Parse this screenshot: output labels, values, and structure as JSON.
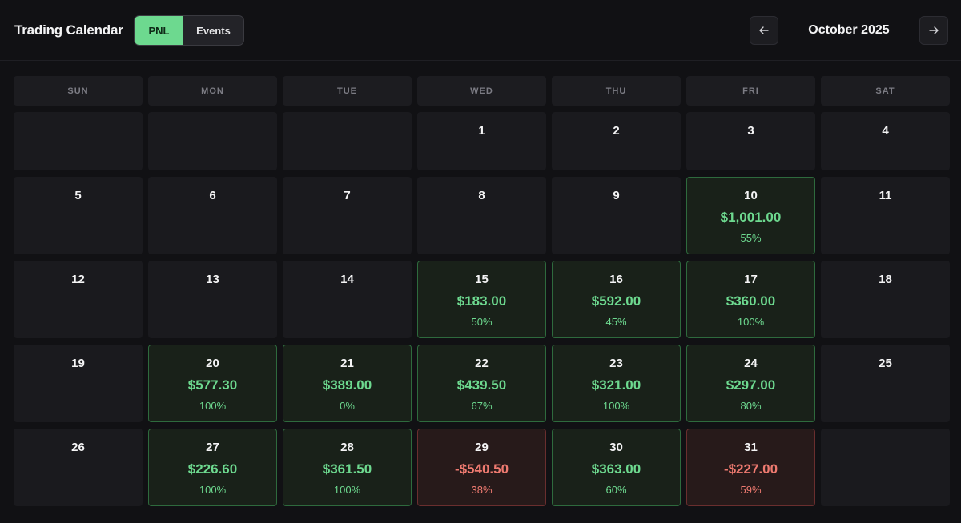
{
  "header": {
    "title": "Trading Calendar",
    "tabs": [
      {
        "label": "PNL",
        "active": true
      },
      {
        "label": "Events",
        "active": false
      }
    ],
    "month_label": "October 2025",
    "prev_icon": "arrow-left-icon",
    "next_icon": "arrow-right-icon"
  },
  "weekdays": [
    "SUN",
    "MON",
    "TUE",
    "WED",
    "THU",
    "FRI",
    "SAT"
  ],
  "colors": {
    "profit": "#6dd98f",
    "loss": "#ee7a70"
  },
  "weeks": [
    [
      {
        "day": ""
      },
      {
        "day": ""
      },
      {
        "day": ""
      },
      {
        "day": "1"
      },
      {
        "day": "2"
      },
      {
        "day": "3"
      },
      {
        "day": "4"
      }
    ],
    [
      {
        "day": "5"
      },
      {
        "day": "6"
      },
      {
        "day": "7"
      },
      {
        "day": "8"
      },
      {
        "day": "9"
      },
      {
        "day": "10",
        "pnl": "$1,001.00",
        "pct": "55%",
        "status": "pos"
      },
      {
        "day": "11"
      }
    ],
    [
      {
        "day": "12"
      },
      {
        "day": "13"
      },
      {
        "day": "14"
      },
      {
        "day": "15",
        "pnl": "$183.00",
        "pct": "50%",
        "status": "pos"
      },
      {
        "day": "16",
        "pnl": "$592.00",
        "pct": "45%",
        "status": "pos"
      },
      {
        "day": "17",
        "pnl": "$360.00",
        "pct": "100%",
        "status": "pos"
      },
      {
        "day": "18"
      }
    ],
    [
      {
        "day": "19"
      },
      {
        "day": "20",
        "pnl": "$577.30",
        "pct": "100%",
        "status": "pos"
      },
      {
        "day": "21",
        "pnl": "$389.00",
        "pct": "0%",
        "status": "pos"
      },
      {
        "day": "22",
        "pnl": "$439.50",
        "pct": "67%",
        "status": "pos"
      },
      {
        "day": "23",
        "pnl": "$321.00",
        "pct": "100%",
        "status": "pos"
      },
      {
        "day": "24",
        "pnl": "$297.00",
        "pct": "80%",
        "status": "pos"
      },
      {
        "day": "25"
      }
    ],
    [
      {
        "day": "26"
      },
      {
        "day": "27",
        "pnl": "$226.60",
        "pct": "100%",
        "status": "pos"
      },
      {
        "day": "28",
        "pnl": "$361.50",
        "pct": "100%",
        "status": "pos"
      },
      {
        "day": "29",
        "pnl": "-$540.50",
        "pct": "38%",
        "status": "neg"
      },
      {
        "day": "30",
        "pnl": "$363.00",
        "pct": "60%",
        "status": "pos"
      },
      {
        "day": "31",
        "pnl": "-$227.00",
        "pct": "59%",
        "status": "neg"
      },
      {
        "day": ""
      }
    ]
  ]
}
